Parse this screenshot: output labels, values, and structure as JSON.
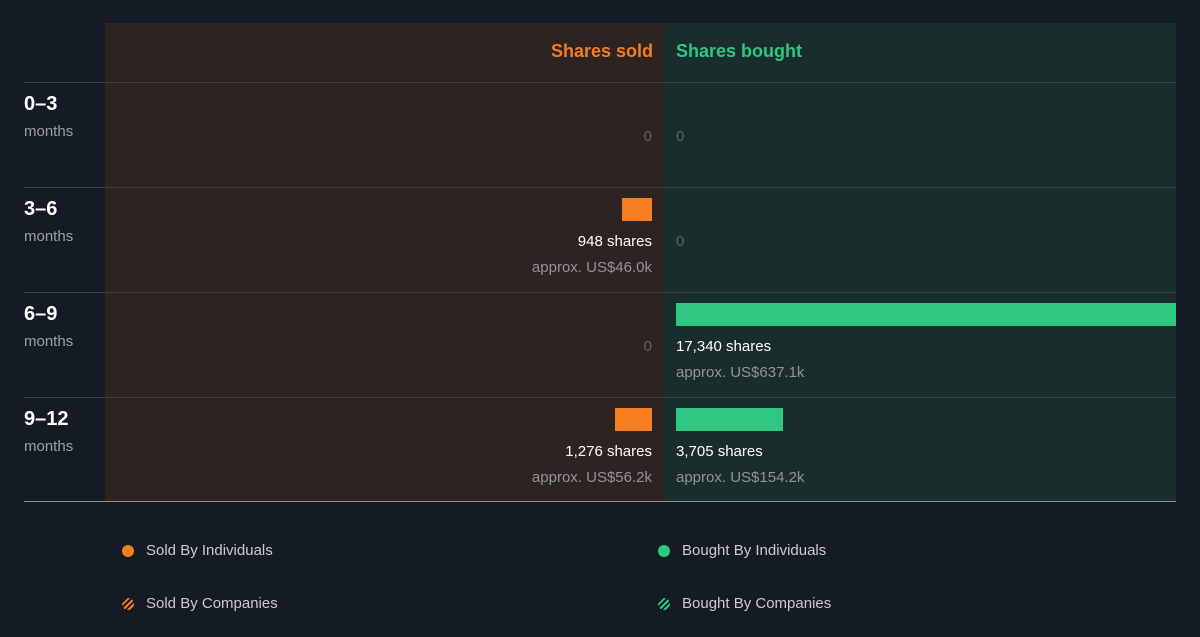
{
  "chart_data": {
    "type": "bar",
    "layout": "diverging-horizontal",
    "headers": {
      "sold": "Shares sold",
      "bought": "Shares bought"
    },
    "categories": [
      "0–3",
      "3–6",
      "6–9",
      "9–12"
    ],
    "category_unit": "months",
    "series": [
      {
        "name": "Shares sold",
        "values": [
          0,
          948,
          0,
          1276
        ],
        "labels": [
          "0",
          "948 shares",
          "0",
          "1,276 shares"
        ],
        "approx": [
          "",
          "approx. US$46.0k",
          "",
          "approx. US$56.2k"
        ]
      },
      {
        "name": "Shares bought",
        "values": [
          0,
          0,
          17340,
          3705
        ],
        "labels": [
          "0",
          "0",
          "17,340 shares",
          "3,705 shares"
        ],
        "approx": [
          "",
          "",
          "approx. US$637.1k",
          "approx. US$154.2k"
        ]
      }
    ],
    "xlim": [
      0,
      17340
    ],
    "legend": {
      "position": "bottom",
      "items": [
        "Sold By Individuals",
        "Bought By Individuals",
        "Sold By Companies",
        "Bought By Companies"
      ]
    },
    "colors": {
      "sold": "#f47e20",
      "bought": "#2ec882",
      "background": "#151b24"
    }
  }
}
